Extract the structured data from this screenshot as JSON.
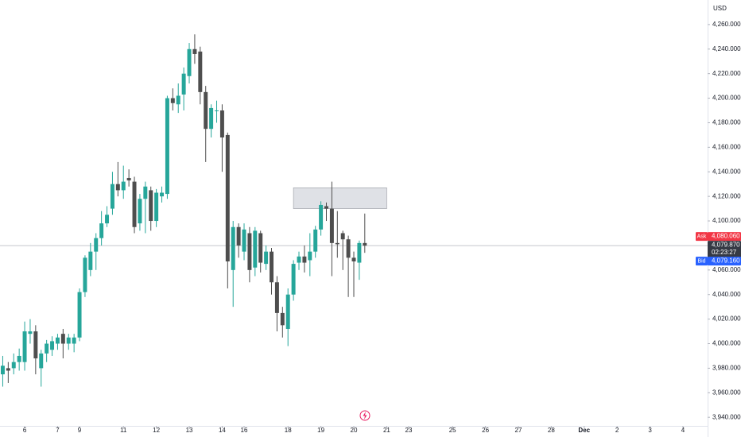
{
  "chart_data": {
    "type": "candlestick",
    "currency": "USD",
    "x": [
      0,
      1,
      2,
      3,
      4,
      5,
      6,
      7,
      8,
      9,
      10,
      11,
      12,
      13,
      14,
      15,
      16,
      17,
      18,
      19,
      20,
      21,
      22,
      23,
      24,
      25,
      26,
      27,
      28,
      29,
      30,
      31,
      32,
      33,
      34,
      35,
      36,
      37,
      38,
      39,
      40,
      41,
      42,
      43,
      44,
      45,
      46,
      47,
      48,
      49,
      50,
      51,
      52,
      53,
      54,
      55,
      56,
      57,
      58,
      59,
      60,
      61,
      62,
      63,
      64,
      65,
      66
    ],
    "open": [
      3975,
      3980,
      3980,
      3985,
      3985,
      4008,
      4010,
      3980,
      3992,
      3995,
      4000,
      4008,
      4000,
      4000,
      4005,
      4042,
      4060,
      4075,
      4086,
      4098,
      4110,
      4130,
      4125,
      4135,
      4132,
      4098,
      4118,
      4125,
      4100,
      4120,
      4122,
      4200,
      4195,
      4203,
      4218,
      4240,
      4238,
      4205,
      4175,
      4190,
      4190,
      4170,
      4060,
      4095,
      4075,
      4090,
      4062,
      4090,
      4065,
      4075,
      4050,
      4025,
      4012,
      4040,
      4066,
      4071,
      4068,
      4075,
      4093,
      4112,
      4110,
      4082,
      4090,
      4085,
      4070,
      4066,
      4082
    ],
    "high": [
      3990,
      3985,
      3992,
      3996,
      4018,
      4020,
      4015,
      3995,
      4003,
      4006,
      4008,
      4012,
      4008,
      4008,
      4045,
      4072,
      4082,
      4090,
      4108,
      4112,
      4140,
      4148,
      4145,
      4142,
      4136,
      4122,
      4132,
      4128,
      4126,
      4128,
      4202,
      4208,
      4212,
      4225,
      4245,
      4252,
      4242,
      4210,
      4195,
      4198,
      4195,
      4172,
      4100,
      4098,
      4098,
      4095,
      4095,
      4092,
      4080,
      4078,
      4055,
      4030,
      4045,
      4068,
      4075,
      4080,
      4090,
      4096,
      4116,
      4115,
      4132,
      4108,
      4092,
      4088,
      4075,
      4084,
      4106
    ],
    "low": [
      3965,
      3968,
      3975,
      3978,
      3978,
      4000,
      3975,
      3965,
      3985,
      3990,
      3995,
      3988,
      3995,
      3993,
      4002,
      4038,
      4055,
      4060,
      4080,
      4095,
      4105,
      4120,
      4118,
      4128,
      4090,
      4092,
      4090,
      4092,
      4095,
      4115,
      4118,
      4190,
      4188,
      4190,
      4212,
      4228,
      4195,
      4148,
      4168,
      4180,
      4140,
      4045,
      4030,
      4070,
      4068,
      4050,
      4055,
      4058,
      4060,
      4040,
      4010,
      4005,
      3998,
      4035,
      4060,
      4058,
      4055,
      4070,
      4088,
      4100,
      4055,
      4070,
      4060,
      4038,
      4038,
      4052,
      4074
    ],
    "close": [
      3982,
      3978,
      3985,
      3990,
      4010,
      4010,
      3988,
      3992,
      4000,
      4002,
      4005,
      4000,
      4005,
      4005,
      4042,
      4070,
      4075,
      4086,
      4098,
      4105,
      4130,
      4125,
      4132,
      4133,
      4095,
      4118,
      4128,
      4100,
      4123,
      4123,
      4200,
      4196,
      4202,
      4220,
      4240,
      4236,
      4205,
      4175,
      4192,
      4190,
      4168,
      4067,
      4095,
      4080,
      4093,
      4060,
      4092,
      4066,
      4075,
      4050,
      4025,
      4015,
      4040,
      4065,
      4071,
      4066,
      4075,
      4093,
      4113,
      4110,
      4082,
      4081,
      4085,
      4070,
      4067,
      4082,
      4079.87
    ],
    "up_color": "#26a69a",
    "down_color": "#4e4e4e",
    "xlim": [
      -0.5,
      128.5
    ],
    "xticks": [
      {
        "value": 4,
        "label": "6"
      },
      {
        "value": 10,
        "label": "7"
      },
      {
        "value": 14,
        "label": "9"
      },
      {
        "value": 22,
        "label": "11"
      },
      {
        "value": 28,
        "label": "12"
      },
      {
        "value": 34,
        "label": "13"
      },
      {
        "value": 40,
        "label": "14"
      },
      {
        "value": 44,
        "label": "16"
      },
      {
        "value": 52,
        "label": "18"
      },
      {
        "value": 58,
        "label": "19"
      },
      {
        "value": 64,
        "label": "20"
      },
      {
        "value": 70,
        "label": "21"
      },
      {
        "value": 74,
        "label": "23"
      },
      {
        "value": 82,
        "label": "25"
      },
      {
        "value": 88,
        "label": "26"
      },
      {
        "value": 94,
        "label": "27"
      },
      {
        "value": 100,
        "label": "28"
      },
      {
        "value": 106,
        "label": "Dec"
      },
      {
        "value": 112,
        "label": "2"
      },
      {
        "value": 118,
        "label": "3"
      },
      {
        "value": 124,
        "label": "4"
      }
    ],
    "ylim": [
      3933,
      4280
    ],
    "yticks": [
      {
        "value": 4260,
        "label": "4,260.000"
      },
      {
        "value": 4240,
        "label": "4,240.000"
      },
      {
        "value": 4220,
        "label": "4,220.000"
      },
      {
        "value": 4200,
        "label": "4,200.000"
      },
      {
        "value": 4180,
        "label": "4,180.000"
      },
      {
        "value": 4160,
        "label": "4,160.000"
      },
      {
        "value": 4140,
        "label": "4,140.000"
      },
      {
        "value": 4120,
        "label": "4,120.000"
      },
      {
        "value": 4100,
        "label": "4,100.000"
      },
      {
        "value": 4060,
        "label": "4,060.000"
      },
      {
        "value": 4040,
        "label": "4,040.000"
      },
      {
        "value": 4020,
        "label": "4,020.000"
      },
      {
        "value": 4000,
        "label": "4,000.000"
      },
      {
        "value": 3980,
        "label": "3,980.000"
      },
      {
        "value": 3960,
        "label": "3,960.000"
      },
      {
        "value": 3940,
        "label": "3,940.000"
      }
    ],
    "zone": {
      "x": [
        53,
        70
      ],
      "y": [
        4110,
        4127
      ],
      "color": "#d1d4dc"
    },
    "price_tags": [
      {
        "name": "Ask",
        "value": 4080.06,
        "label": "4,080.060",
        "color": "#f23645"
      },
      {
        "value": 4079.87,
        "label": "4,079.870",
        "countdown": "02:23:27",
        "color": "#363a45"
      },
      {
        "name": "Bid",
        "value": 4079.16,
        "label": "4,079.160",
        "color": "#2962ff"
      }
    ]
  }
}
